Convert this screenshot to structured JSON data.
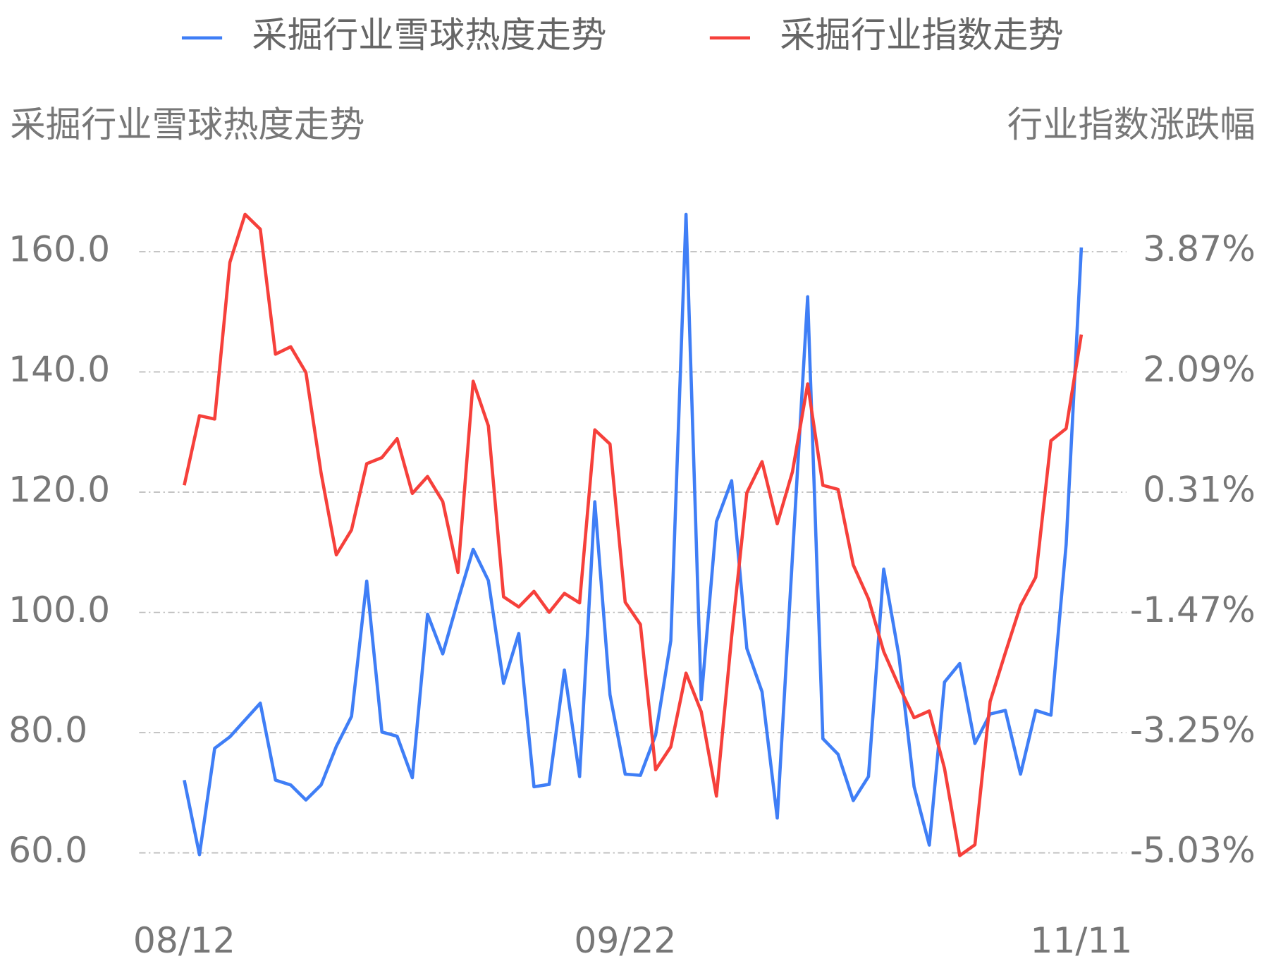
{
  "chart_data": {
    "type": "line",
    "categories": [
      "08/12",
      null,
      null,
      null,
      null,
      null,
      null,
      null,
      null,
      null,
      null,
      null,
      null,
      null,
      null,
      null,
      null,
      null,
      null,
      null,
      null,
      null,
      null,
      null,
      null,
      null,
      null,
      null,
      null,
      "09/22",
      null,
      null,
      null,
      null,
      null,
      null,
      null,
      null,
      null,
      null,
      null,
      null,
      null,
      null,
      null,
      null,
      null,
      null,
      null,
      null,
      null,
      null,
      null,
      null,
      null,
      null,
      null,
      null,
      null,
      "11/11"
    ],
    "y_label": "采掘行业雪球热度走势",
    "y2_label": "行业指数涨跌幅",
    "ylim": [
      60,
      167
    ],
    "yticks": [
      {
        "value": 60,
        "label": "60.0"
      },
      {
        "value": 80,
        "label": "80.0"
      },
      {
        "value": 100,
        "label": "100.0"
      },
      {
        "value": 120,
        "label": "120.0"
      },
      {
        "value": 140,
        "label": "140.0"
      },
      {
        "value": 160,
        "label": "160.0"
      }
    ],
    "y2lim": [
      -5.03,
      4.49
    ],
    "y2ticks": [
      {
        "value": -5.03,
        "label": "-5.03%"
      },
      {
        "value": -3.25,
        "label": "-3.25%"
      },
      {
        "value": -1.47,
        "label": "-1.47%"
      },
      {
        "value": 0.31,
        "label": "0.31%"
      },
      {
        "value": 2.09,
        "label": "2.09%"
      },
      {
        "value": 3.87,
        "label": "3.87%"
      }
    ],
    "grid": true,
    "legend": "top",
    "series": [
      {
        "name": "采掘行业雪球热度走势",
        "color": "#3f7ef6",
        "values": [
          72.1,
          59.7,
          77.4,
          79.3,
          82.1,
          84.9,
          72.1,
          71.3,
          68.8,
          71.3,
          77.7,
          82.7,
          105.2,
          80.1,
          79.4,
          72.5,
          99.7,
          93.1,
          102.0,
          110.5,
          105.3,
          88.2,
          96.5,
          71.0,
          71.4,
          90.4,
          72.7,
          118.4,
          86.3,
          73.1,
          72.9,
          79.6,
          95.3,
          166.2,
          85.5,
          115.1,
          121.9,
          94.0,
          86.8,
          65.8,
          109.3,
          152.5,
          79.0,
          76.4,
          68.7,
          72.7,
          107.2,
          92.8,
          71.0,
          61.3,
          88.4,
          91.5,
          78.2,
          83.1,
          83.7,
          73.1,
          83.7,
          82.9,
          111.3,
          160.7
        ]
      },
      {
        "name": "采掘行业指数走势",
        "color": "#f6403b",
        "axis": "y2",
        "values": [
          0.41,
          1.44,
          1.39,
          3.71,
          4.42,
          4.2,
          2.35,
          2.46,
          2.08,
          0.59,
          -0.62,
          -0.25,
          0.73,
          0.82,
          1.1,
          0.29,
          0.54,
          0.17,
          -0.88,
          1.95,
          1.29,
          -1.24,
          -1.39,
          -1.16,
          -1.47,
          -1.19,
          -1.33,
          1.23,
          1.02,
          -1.32,
          -1.65,
          -3.8,
          -3.46,
          -2.37,
          -2.94,
          -4.19,
          -1.83,
          0.3,
          0.76,
          -0.16,
          0.61,
          1.91,
          0.41,
          0.35,
          -0.77,
          -1.27,
          -2.05,
          -2.56,
          -3.03,
          -2.93,
          -3.78,
          -5.07,
          -4.91,
          -2.79,
          -2.07,
          -1.37,
          -0.95,
          1.07,
          1.25,
          2.64
        ]
      }
    ]
  }
}
